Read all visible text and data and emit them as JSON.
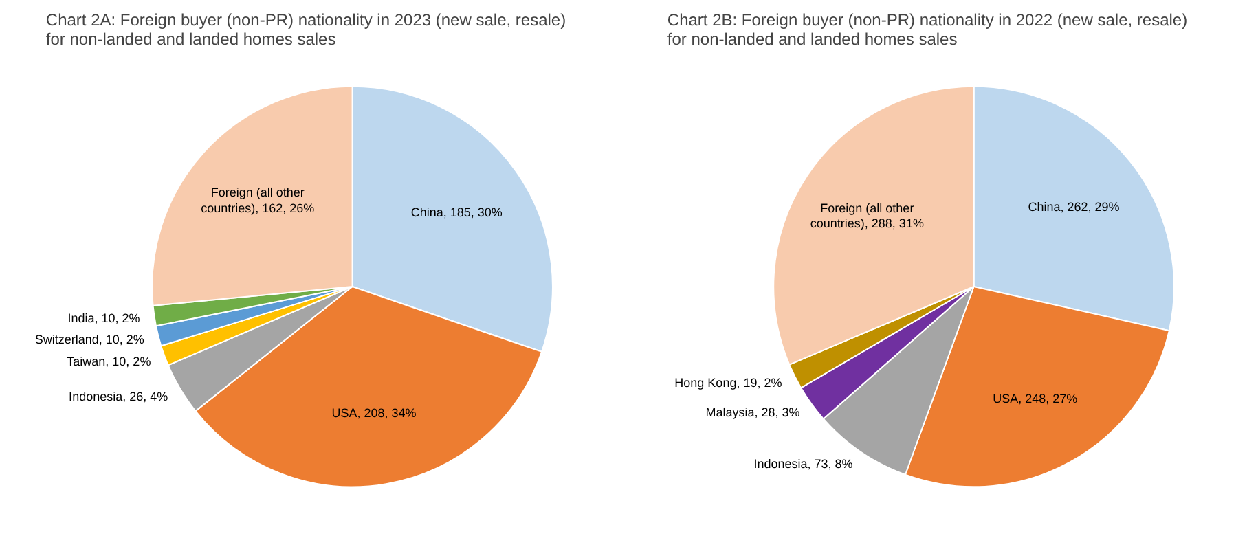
{
  "chart_data": [
    {
      "type": "pie",
      "title": "Chart 2A: Foreign buyer (non-PR) nationality in 2023 (new sale, resale) for non-landed and landed homes sales",
      "categories": [
        "China",
        "USA",
        "Indonesia",
        "Taiwan",
        "Switzerland",
        "India",
        "Foreign (all other countries)"
      ],
      "values": [
        185,
        208,
        26,
        10,
        10,
        10,
        162
      ],
      "colors": [
        "#bdd7ee",
        "#ed7d31",
        "#a5a5a5",
        "#ffc000",
        "#5b9bd5",
        "#70ad47",
        "#f8cbad"
      ],
      "value_labels": [
        "185, 30%",
        "208, 34%",
        "26, 4%",
        "10, 2%",
        "10, 2%",
        "10, 2%",
        "162, 26%"
      ]
    },
    {
      "type": "pie",
      "title": "Chart 2B: Foreign buyer (non-PR) nationality in 2022 (new sale, resale) for non-landed and landed homes sales",
      "categories": [
        "China",
        "USA",
        "Indonesia",
        "Malaysia",
        "Hong Kong",
        "Foreign (all other countries)"
      ],
      "values": [
        262,
        248,
        73,
        28,
        19,
        288
      ],
      "colors": [
        "#bdd7ee",
        "#ed7d31",
        "#a5a5a5",
        "#7030a0",
        "#bf9000",
        "#f8cbad"
      ],
      "value_labels": [
        "262, 29%",
        "248, 27%",
        "73, 8%",
        "28, 3%",
        "19, 2%",
        "288, 31%"
      ]
    }
  ]
}
